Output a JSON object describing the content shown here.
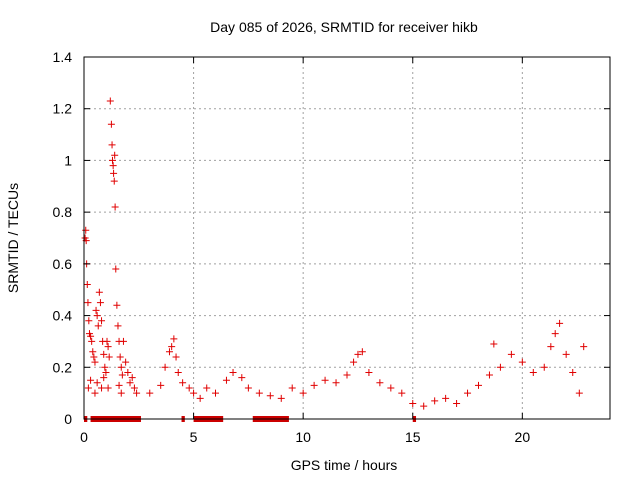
{
  "chart_data": {
    "type": "scatter",
    "title": "Day 085 of 2026, SRMTID for receiver hikb",
    "xlabel": "GPS time / hours",
    "ylabel": "SRMTID / TECUs",
    "xlim": [
      0,
      24
    ],
    "ylim": [
      0,
      1.4
    ],
    "xticks": [
      0,
      5,
      10,
      15,
      20
    ],
    "yticks": [
      0,
      0.2,
      0.4,
      0.6,
      0.8,
      1,
      1.2,
      1.4
    ],
    "x_tick_labels": [
      "0",
      "5",
      "10",
      "15",
      "20"
    ],
    "y_tick_labels": [
      "0",
      "0.2",
      "0.4",
      "0.6",
      "0.8",
      "1",
      "1.2",
      "1.4"
    ],
    "grid": true,
    "marker": "+",
    "color": "#e00000",
    "series": [
      {
        "name": "SRMTID",
        "points": [
          [
            0.05,
            0.7
          ],
          [
            0.08,
            0.73
          ],
          [
            0.1,
            0.69
          ],
          [
            0.12,
            0.6
          ],
          [
            0.15,
            0.52
          ],
          [
            0.18,
            0.45
          ],
          [
            0.22,
            0.38
          ],
          [
            0.25,
            0.33
          ],
          [
            0.3,
            0.32
          ],
          [
            0.35,
            0.3
          ],
          [
            0.4,
            0.26
          ],
          [
            0.45,
            0.24
          ],
          [
            0.5,
            0.22
          ],
          [
            0.55,
            0.42
          ],
          [
            0.6,
            0.4
          ],
          [
            0.65,
            0.36
          ],
          [
            0.7,
            0.49
          ],
          [
            0.75,
            0.45
          ],
          [
            0.8,
            0.38
          ],
          [
            0.85,
            0.3
          ],
          [
            0.9,
            0.25
          ],
          [
            0.95,
            0.2
          ],
          [
            1.0,
            0.18
          ],
          [
            1.05,
            0.3
          ],
          [
            1.1,
            0.28
          ],
          [
            1.15,
            0.24
          ],
          [
            1.2,
            1.23
          ],
          [
            1.25,
            1.14
          ],
          [
            1.28,
            1.06
          ],
          [
            1.3,
            1.0
          ],
          [
            1.33,
            0.98
          ],
          [
            1.35,
            0.95
          ],
          [
            1.38,
            0.92
          ],
          [
            1.4,
            1.02
          ],
          [
            1.42,
            0.82
          ],
          [
            1.45,
            0.58
          ],
          [
            1.5,
            0.44
          ],
          [
            1.55,
            0.36
          ],
          [
            1.6,
            0.3
          ],
          [
            1.65,
            0.24
          ],
          [
            1.7,
            0.2
          ],
          [
            1.75,
            0.17
          ],
          [
            1.8,
            0.3
          ],
          [
            1.9,
            0.22
          ],
          [
            2.0,
            0.18
          ],
          [
            2.1,
            0.14
          ],
          [
            2.2,
            0.16
          ],
          [
            2.3,
            0.12
          ],
          [
            2.4,
            0.1
          ],
          [
            0.2,
            0.12
          ],
          [
            0.3,
            0.15
          ],
          [
            0.5,
            0.1
          ],
          [
            0.6,
            0.14
          ],
          [
            0.8,
            0.12
          ],
          [
            0.9,
            0.16
          ],
          [
            1.1,
            0.12
          ],
          [
            1.6,
            0.13
          ],
          [
            1.7,
            0.1
          ],
          [
            3.0,
            0.1
          ],
          [
            3.5,
            0.13
          ],
          [
            3.7,
            0.2
          ],
          [
            3.9,
            0.26
          ],
          [
            4.0,
            0.28
          ],
          [
            4.1,
            0.31
          ],
          [
            4.2,
            0.24
          ],
          [
            4.3,
            0.18
          ],
          [
            4.5,
            0.14
          ],
          [
            4.8,
            0.12
          ],
          [
            5.0,
            0.1
          ],
          [
            5.3,
            0.08
          ],
          [
            5.6,
            0.12
          ],
          [
            6.0,
            0.1
          ],
          [
            6.5,
            0.15
          ],
          [
            6.8,
            0.18
          ],
          [
            7.2,
            0.16
          ],
          [
            7.5,
            0.12
          ],
          [
            8.0,
            0.1
          ],
          [
            8.5,
            0.09
          ],
          [
            9.0,
            0.08
          ],
          [
            9.5,
            0.12
          ],
          [
            10.0,
            0.1
          ],
          [
            10.5,
            0.13
          ],
          [
            11.0,
            0.15
          ],
          [
            11.5,
            0.14
          ],
          [
            12.0,
            0.17
          ],
          [
            12.3,
            0.22
          ],
          [
            12.5,
            0.25
          ],
          [
            12.7,
            0.26
          ],
          [
            13.0,
            0.18
          ],
          [
            13.5,
            0.14
          ],
          [
            14.0,
            0.12
          ],
          [
            14.5,
            0.1
          ],
          [
            15.0,
            0.06
          ],
          [
            15.5,
            0.05
          ],
          [
            16.0,
            0.07
          ],
          [
            16.5,
            0.08
          ],
          [
            17.0,
            0.06
          ],
          [
            17.5,
            0.1
          ],
          [
            18.0,
            0.13
          ],
          [
            18.5,
            0.17
          ],
          [
            18.7,
            0.29
          ],
          [
            19.0,
            0.2
          ],
          [
            19.5,
            0.25
          ],
          [
            20.0,
            0.22
          ],
          [
            20.5,
            0.18
          ],
          [
            21.0,
            0.2
          ],
          [
            21.3,
            0.28
          ],
          [
            21.5,
            0.33
          ],
          [
            21.7,
            0.37
          ],
          [
            22.0,
            0.25
          ],
          [
            22.3,
            0.18
          ],
          [
            22.6,
            0.1
          ],
          [
            22.8,
            0.28
          ]
        ]
      }
    ],
    "flag_intervals": [
      [
        0.0,
        0.15
      ],
      [
        0.3,
        2.6
      ],
      [
        4.45,
        4.6
      ],
      [
        5.0,
        6.35
      ],
      [
        7.7,
        9.35
      ],
      [
        15.0,
        15.15
      ]
    ],
    "flag_y": 0
  }
}
